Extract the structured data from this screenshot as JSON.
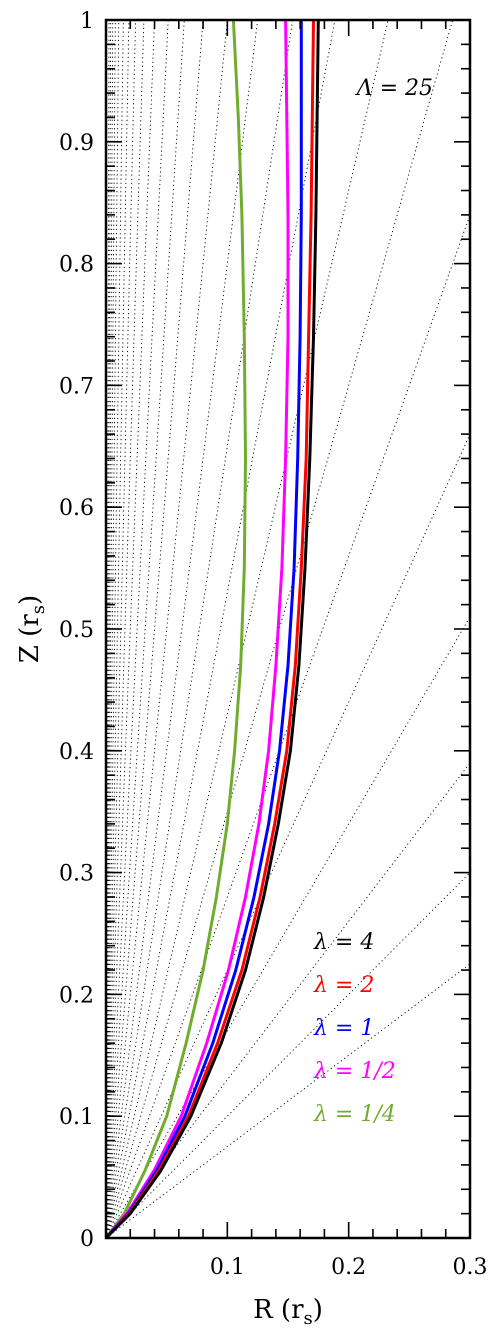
{
  "chart_data": {
    "type": "line",
    "xlabel": "R (r_s)",
    "ylabel": "Z (r_s)",
    "xlim": [
      0,
      0.3
    ],
    "ylim": [
      0,
      1
    ],
    "x_ticks": [
      {
        "value": 0.1,
        "label": "0.1"
      },
      {
        "value": 0.2,
        "label": "0.2"
      },
      {
        "value": 0.3,
        "label": "0.3"
      }
    ],
    "y_ticks": [
      {
        "value": 0,
        "label": "0"
      },
      {
        "value": 0.1,
        "label": "0.1"
      },
      {
        "value": 0.2,
        "label": "0.2"
      },
      {
        "value": 0.3,
        "label": "0.3"
      },
      {
        "value": 0.4,
        "label": "0.4"
      },
      {
        "value": 0.5,
        "label": "0.5"
      },
      {
        "value": 0.6,
        "label": "0.6"
      },
      {
        "value": 0.7,
        "label": "0.7"
      },
      {
        "value": 0.8,
        "label": "0.8"
      },
      {
        "value": 0.9,
        "label": "0.9"
      },
      {
        "value": 1,
        "label": "1"
      }
    ],
    "annotation": "Λ = 25",
    "series": [
      {
        "name": "λ = 4",
        "color": "#000000",
        "points": [
          [
            0,
            0
          ],
          [
            0.02,
            0.02
          ],
          [
            0.045,
            0.055
          ],
          [
            0.07,
            0.1
          ],
          [
            0.095,
            0.16
          ],
          [
            0.115,
            0.22
          ],
          [
            0.13,
            0.28
          ],
          [
            0.142,
            0.34
          ],
          [
            0.152,
            0.4
          ],
          [
            0.159,
            0.47
          ],
          [
            0.164,
            0.55
          ],
          [
            0.168,
            0.64
          ],
          [
            0.171,
            0.74
          ],
          [
            0.173,
            0.84
          ],
          [
            0.174,
            0.92
          ],
          [
            0.175,
            1.0
          ]
        ]
      },
      {
        "name": "λ = 2",
        "color": "#ff0000",
        "points": [
          [
            0,
            0
          ],
          [
            0.02,
            0.021
          ],
          [
            0.044,
            0.056
          ],
          [
            0.068,
            0.1
          ],
          [
            0.092,
            0.16
          ],
          [
            0.112,
            0.22
          ],
          [
            0.127,
            0.28
          ],
          [
            0.139,
            0.34
          ],
          [
            0.149,
            0.4
          ],
          [
            0.156,
            0.47
          ],
          [
            0.161,
            0.55
          ],
          [
            0.165,
            0.64
          ],
          [
            0.167,
            0.74
          ],
          [
            0.169,
            0.84
          ],
          [
            0.17,
            0.92
          ],
          [
            0.171,
            1.0
          ]
        ]
      },
      {
        "name": "λ = 1",
        "color": "#0000ff",
        "points": [
          [
            0,
            0
          ],
          [
            0.019,
            0.021
          ],
          [
            0.042,
            0.056
          ],
          [
            0.065,
            0.1
          ],
          [
            0.088,
            0.16
          ],
          [
            0.107,
            0.22
          ],
          [
            0.122,
            0.28
          ],
          [
            0.134,
            0.34
          ],
          [
            0.143,
            0.4
          ],
          [
            0.15,
            0.47
          ],
          [
            0.155,
            0.55
          ],
          [
            0.158,
            0.64
          ],
          [
            0.16,
            0.74
          ],
          [
            0.161,
            0.84
          ],
          [
            0.161,
            0.92
          ],
          [
            0.161,
            1.0
          ]
        ]
      },
      {
        "name": "λ = 1/2",
        "color": "#ff00ff",
        "points": [
          [
            0,
            0
          ],
          [
            0.018,
            0.021
          ],
          [
            0.04,
            0.056
          ],
          [
            0.062,
            0.1
          ],
          [
            0.083,
            0.16
          ],
          [
            0.101,
            0.22
          ],
          [
            0.115,
            0.28
          ],
          [
            0.126,
            0.34
          ],
          [
            0.134,
            0.4
          ],
          [
            0.14,
            0.47
          ],
          [
            0.145,
            0.55
          ],
          [
            0.148,
            0.64
          ],
          [
            0.15,
            0.74
          ],
          [
            0.15,
            0.84
          ],
          [
            0.149,
            0.92
          ],
          [
            0.148,
            1.0
          ]
        ]
      },
      {
        "name": "λ = 1/4",
        "color": "#70ad2f",
        "points": [
          [
            0,
            0
          ],
          [
            0.015,
            0.02
          ],
          [
            0.032,
            0.055
          ],
          [
            0.05,
            0.1
          ],
          [
            0.066,
            0.16
          ],
          [
            0.08,
            0.22
          ],
          [
            0.091,
            0.28
          ],
          [
            0.1,
            0.34
          ],
          [
            0.106,
            0.4
          ],
          [
            0.111,
            0.47
          ],
          [
            0.114,
            0.55
          ],
          [
            0.115,
            0.64
          ],
          [
            0.114,
            0.74
          ],
          [
            0.112,
            0.84
          ],
          [
            0.109,
            0.92
          ],
          [
            0.105,
            1.0
          ]
        ]
      }
    ],
    "guide_line_slopes": [
      0.75,
      1.0,
      1.3,
      1.7,
      2.2,
      2.8,
      3.5,
      4.3,
      5.3,
      6.5,
      8,
      10,
      12.5,
      15.5,
      19.5,
      25,
      32,
      41,
      53,
      70,
      95,
      130,
      180,
      260,
      400
    ],
    "legend_position": "bottom-right"
  }
}
